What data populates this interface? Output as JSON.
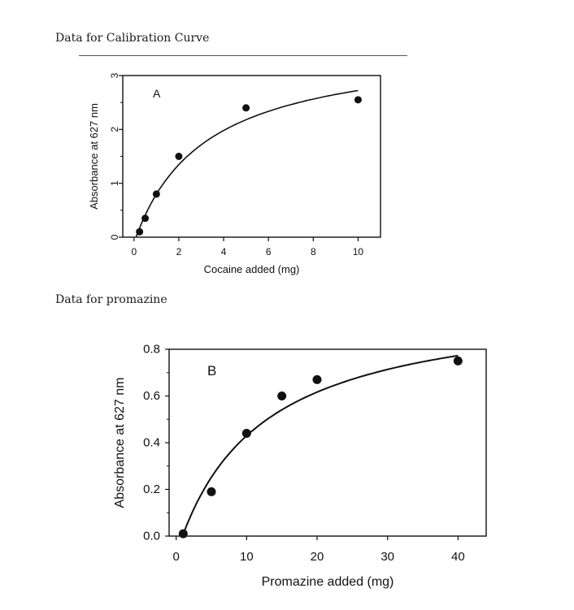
{
  "headings": {
    "calibration": "Data for Calibration Curve",
    "promazine": "Data for promazine"
  },
  "colors": {
    "ink": "#111111"
  },
  "chart_data": [
    {
      "type": "scatter",
      "panel_label": "A",
      "title": "",
      "xlabel": "Cocaine added (mg)",
      "ylabel": "Absorbance at 627 nm",
      "xlim": [
        -0.5,
        11
      ],
      "ylim": [
        0,
        3
      ],
      "xticks": [
        "0",
        "2",
        "4",
        "6",
        "8",
        "10"
      ],
      "yticks": [
        "0",
        "1",
        "2",
        "3"
      ],
      "points": {
        "x": [
          0.25,
          0.5,
          1,
          2,
          5,
          10
        ],
        "y": [
          0.1,
          0.35,
          0.8,
          1.5,
          2.4,
          2.55
        ]
      },
      "fit_curve": {
        "type": "saturation",
        "vmax": 3.6,
        "km": 3.2,
        "x0": 0.1,
        "x1": 10
      }
    },
    {
      "type": "scatter",
      "panel_label": "B",
      "title": "",
      "xlabel": "Promazine added (mg)",
      "ylabel": "Absorbance at 627 nm",
      "xlim": [
        -1,
        44
      ],
      "ylim": [
        0,
        0.8
      ],
      "xticks": [
        "0",
        "10",
        "20",
        "30",
        "40"
      ],
      "yticks": [
        "0.0",
        "0.2",
        "0.4",
        "0.6",
        "0.8"
      ],
      "points": {
        "x": [
          1,
          5,
          10,
          15,
          20,
          40
        ],
        "y": [
          0.01,
          0.19,
          0.44,
          0.6,
          0.67,
          0.75
        ]
      },
      "fit_curve": {
        "type": "saturation",
        "vmax": 1.02,
        "km": 12.5,
        "x0": 1,
        "x1": 40
      }
    }
  ]
}
